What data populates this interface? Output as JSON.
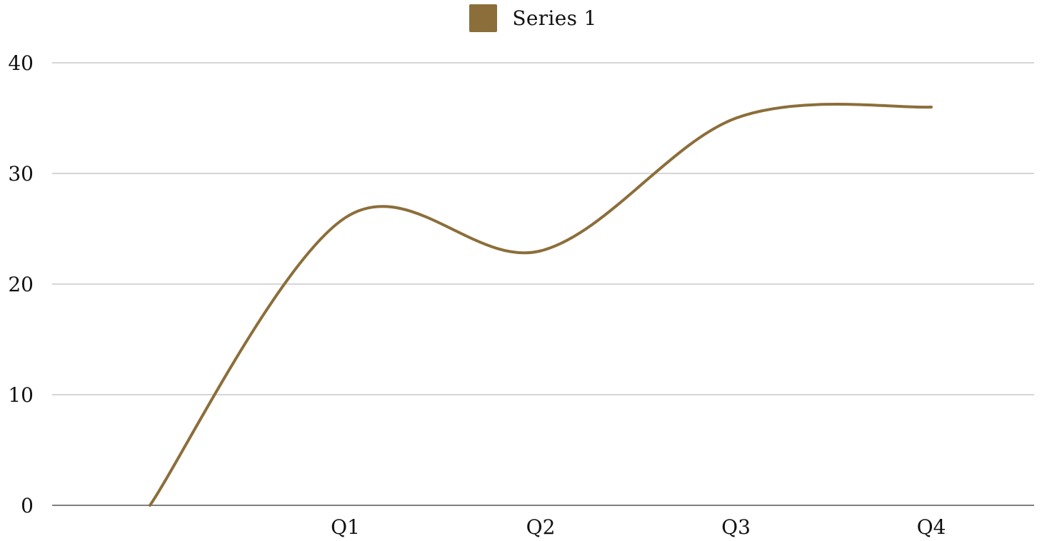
{
  "colors": {
    "series": "#8c6e3a",
    "grid": "#c8c8c8",
    "axis": "#555555",
    "text": "#111111",
    "background": "#ffffff"
  },
  "chart_data": {
    "type": "line",
    "title": "",
    "xlabel": "",
    "ylabel": "",
    "categories": [
      "",
      "Q1",
      "Q2",
      "Q3",
      "Q4"
    ],
    "series": [
      {
        "name": "Series 1",
        "values": [
          0,
          26,
          23,
          35,
          36
        ]
      }
    ],
    "ylim": [
      0,
      40
    ],
    "yticks": [
      0,
      10,
      20,
      30,
      40
    ],
    "grid": true,
    "smooth": true,
    "legend": "top-center"
  }
}
